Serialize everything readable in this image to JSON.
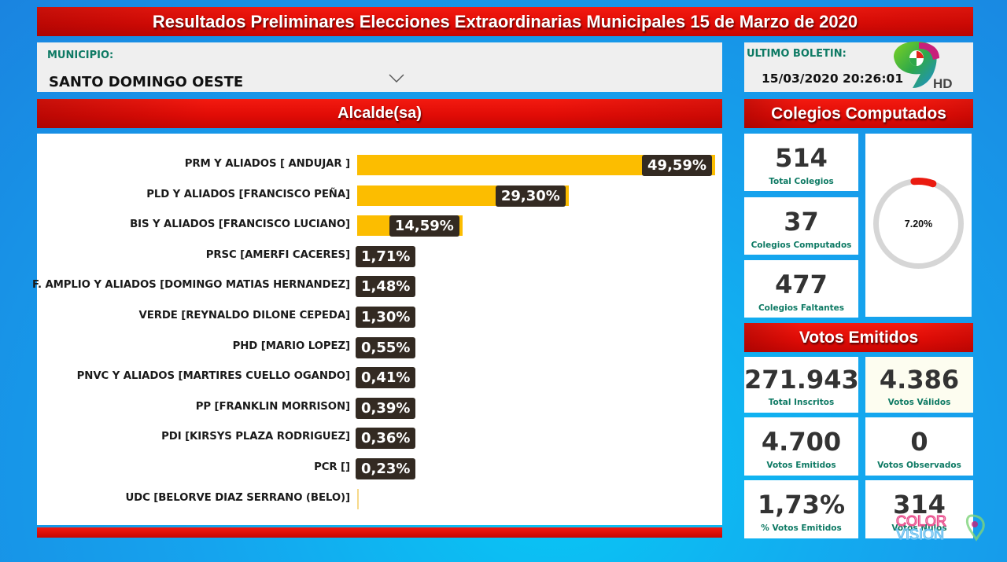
{
  "header": {
    "title": "Resultados Preliminares Elecciones Extraordinarias Municipales 15 de Marzo de 2020"
  },
  "municipio": {
    "label": "MUNICIPIO:",
    "selected": "SANTO DOMINGO OESTE",
    "icon": "chevron-down-icon"
  },
  "boletin": {
    "label": "ULTIMO BOLETIN:",
    "value": "15/03/2020 20:26:01"
  },
  "logos": {
    "channel": "9HD",
    "channel_hd": "HD",
    "watermark": "COLOR VISION"
  },
  "chart_section": {
    "title": "Alcalde(sa)"
  },
  "chart_data": {
    "type": "bar",
    "orientation": "horizontal",
    "title": "Alcalde(sa)",
    "xlabel": "",
    "ylabel": "",
    "bar_color": "#fcbd00",
    "label_bg_color": "#332a22",
    "categories": [
      "PRM Y ALIADOS [ ANDUJAR ]",
      "PLD Y ALIADOS [FRANCISCO PEÑA]",
      "BIS Y ALIADOS [FRANCISCO LUCIANO]",
      "PRSC [AMERFI CACERES]",
      "F. AMPLIO Y ALIADOS [DOMINGO MATIAS HERNANDEZ]",
      "VERDE [REYNALDO DILONE CEPEDA]",
      "PHD [MARIO LOPEZ]",
      "PNVC Y ALIADOS [MARTIRES CUELLO OGANDO]",
      "PP [FRANKLIN MORRISON]",
      "PDI [KIRSYS PLAZA RODRIGUEZ]",
      "PCR []",
      "UDC [BELORVE DIAZ SERRANO (BELO)]"
    ],
    "values": [
      49.59,
      29.3,
      14.59,
      1.71,
      1.48,
      1.3,
      0.55,
      0.41,
      0.39,
      0.36,
      0.23,
      0.0
    ],
    "labels": [
      "49,59%",
      "29,30%",
      "14,59%",
      "1,71%",
      "1,48%",
      "1,30%",
      "0,55%",
      "0,41%",
      "0,39%",
      "0,36%",
      "0,23%",
      ""
    ],
    "xlim": [
      0,
      50
    ],
    "grid": false,
    "legend": "none"
  },
  "colegios": {
    "title": "Colegios Computados",
    "cards": [
      {
        "value": "514",
        "label": "Total Colegios"
      },
      {
        "value": "37",
        "label": "Colegios Computados"
      },
      {
        "value": "477",
        "label": "Colegios Faltantes"
      }
    ],
    "gauge": {
      "value_text": "7.20%",
      "percent": 7.2,
      "track_color": "#d6d6d6",
      "fill_color": "#ea1b10"
    }
  },
  "votos": {
    "title": "Votos Emitidos",
    "cards": [
      {
        "value": "271.943",
        "label": "Total Inscritos"
      },
      {
        "value": "4.386",
        "label": "Votos Válidos"
      },
      {
        "value": "4.700",
        "label": "Votos Emitidos"
      },
      {
        "value": "0",
        "label": "Votos Observados"
      },
      {
        "value": "1,73%",
        "label": "% Votos Emitidos"
      },
      {
        "value": "314",
        "label": "Votos Nulos"
      }
    ]
  },
  "colors": {
    "banner_red": "#e10c06",
    "accent_green": "#0e7a64",
    "background_blue": "#15a4ee",
    "bar_yellow": "#fcbd00"
  }
}
